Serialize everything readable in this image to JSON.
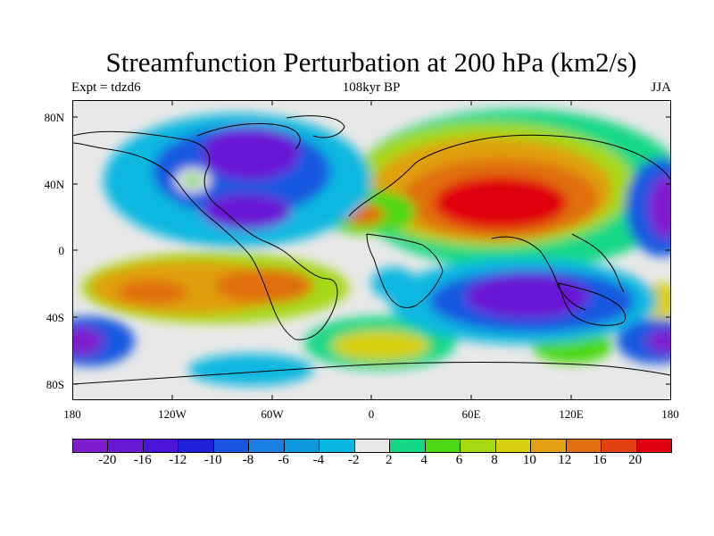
{
  "title": "Streamfunction Perturbation at 200 hPa (km2/s)",
  "subtitle_left": "Expt = tdzd6",
  "subtitle_center": "108kyr BP",
  "subtitle_right": "JJA",
  "lat_labels": [
    "80N",
    "40N",
    "0",
    "40S",
    "80S"
  ],
  "lon_labels": [
    "180",
    "120W",
    "60W",
    "0",
    "60E",
    "120E",
    "180"
  ],
  "colorbar": {
    "colors": [
      "#7f1ecf",
      "#6a18d6",
      "#4c14d8",
      "#2020d8",
      "#1858e0",
      "#1a7fe3",
      "#0c98da",
      "#09b8e0",
      "#e8e8e8",
      "#14d886",
      "#4dd814",
      "#a6d814",
      "#d6d010",
      "#e0a010",
      "#e07010",
      "#e24010",
      "#e00010"
    ],
    "labels": [
      "-20",
      "-16",
      "-12",
      "-10",
      "-8",
      "-6",
      "-4",
      "-2",
      "2",
      "4",
      "6",
      "8",
      "10",
      "12",
      "16",
      "20"
    ]
  }
}
